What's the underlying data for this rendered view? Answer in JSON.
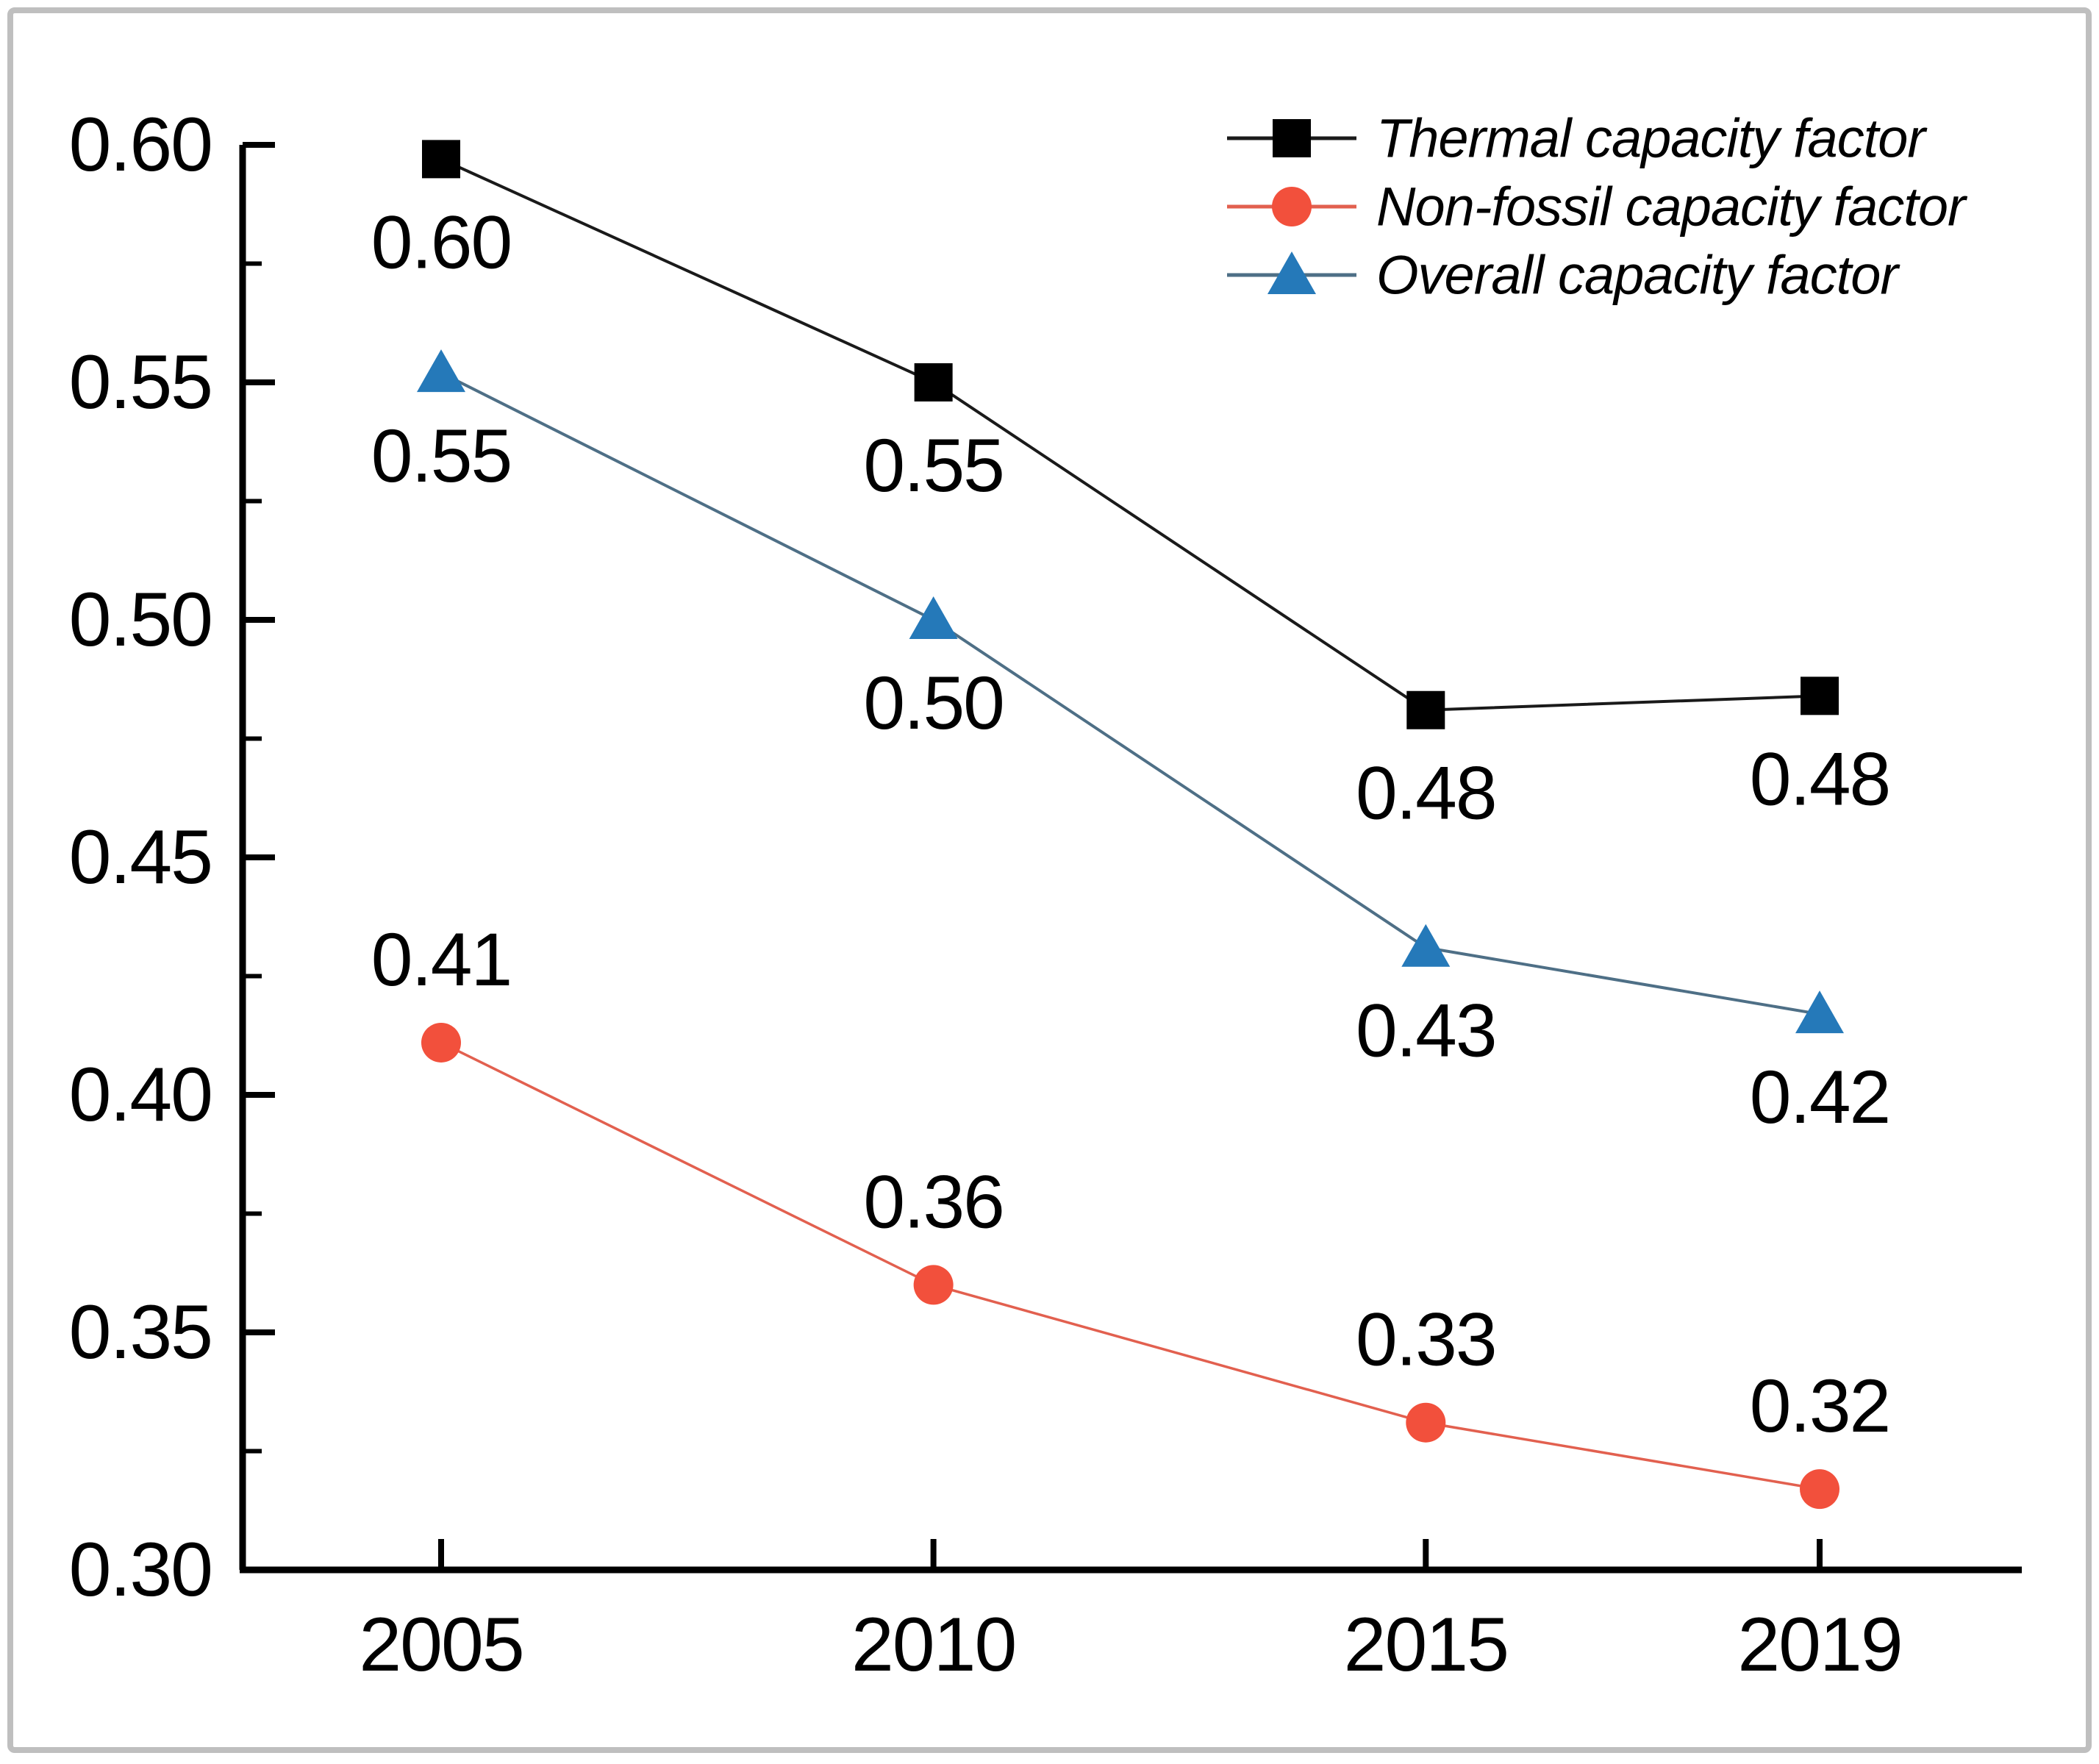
{
  "figure": {
    "description": "Line chart of capacity factors by year",
    "background_color": "#ffffff",
    "frame_border_color": "#bfbfbf"
  },
  "chart_data": {
    "type": "line",
    "x": [
      2005,
      2010,
      2015,
      2019
    ],
    "x_tick_labels": [
      "2005",
      "2010",
      "2015",
      "2019"
    ],
    "ylim": [
      0.3,
      0.6
    ],
    "y_major_step": 0.05,
    "y_minor_step": 0.025,
    "y_tick_labels": [
      "0.30",
      "0.35",
      "0.40",
      "0.45",
      "0.50",
      "0.55",
      "0.60"
    ],
    "grid": false,
    "legend_position": "top-right",
    "series": [
      {
        "name": "Thermal capacity factor",
        "marker": "square",
        "marker_color": "#000000",
        "line_color": "#1a1a1a",
        "values": [
          0.597,
          0.55,
          0.481,
          0.484
        ],
        "point_labels": [
          "0.60",
          "0.55",
          "0.48",
          "0.48"
        ],
        "label_position": "below"
      },
      {
        "name": "Non-fossil capacity factor",
        "marker": "circle",
        "marker_color": "#f2503c",
        "line_color": "#e2604f",
        "values": [
          0.411,
          0.36,
          0.331,
          0.317
        ],
        "point_labels": [
          "0.41",
          "0.36",
          "0.33",
          "0.32"
        ],
        "label_position": "above"
      },
      {
        "name": "Overall capacity factor",
        "marker": "triangle",
        "marker_color": "#2579b9",
        "line_color": "#4e6f86",
        "values": [
          0.552,
          0.5,
          0.431,
          0.417
        ],
        "point_labels": [
          "0.55",
          "0.50",
          "0.43",
          "0.42"
        ],
        "label_position": "below"
      }
    ],
    "legend_order": [
      "Thermal capacity factor",
      "Non-fossil capacity factor",
      "Overall capacity factor"
    ],
    "axis_color": "#000000",
    "tick_direction": "in"
  }
}
